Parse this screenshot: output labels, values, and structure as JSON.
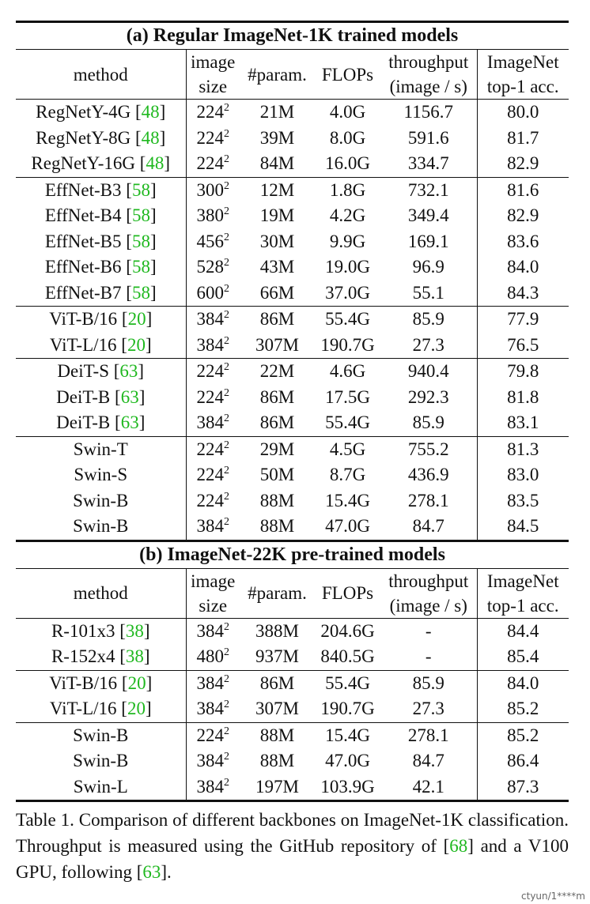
{
  "headers": {
    "method": "method",
    "image_size": [
      "image",
      "size"
    ],
    "params": "#param.",
    "flops": "FLOPs",
    "throughput": [
      "throughput",
      "(image / s)"
    ],
    "imagenet": [
      "ImageNet",
      "top-1 acc."
    ]
  },
  "sections": [
    {
      "title": "(a) Regular ImageNet-1K trained models",
      "groups": [
        [
          {
            "method": "RegNetY-4G",
            "cite": "48",
            "size": "224",
            "params": "21M",
            "flops": "4.0G",
            "throughput": "1156.7",
            "acc": "80.0"
          },
          {
            "method": "RegNetY-8G",
            "cite": "48",
            "size": "224",
            "params": "39M",
            "flops": "8.0G",
            "throughput": "591.6",
            "acc": "81.7"
          },
          {
            "method": "RegNetY-16G",
            "cite": "48",
            "size": "224",
            "params": "84M",
            "flops": "16.0G",
            "throughput": "334.7",
            "acc": "82.9"
          }
        ],
        [
          {
            "method": "EffNet-B3",
            "cite": "58",
            "size": "300",
            "params": "12M",
            "flops": "1.8G",
            "throughput": "732.1",
            "acc": "81.6"
          },
          {
            "method": "EffNet-B4",
            "cite": "58",
            "size": "380",
            "params": "19M",
            "flops": "4.2G",
            "throughput": "349.4",
            "acc": "82.9"
          },
          {
            "method": "EffNet-B5",
            "cite": "58",
            "size": "456",
            "params": "30M",
            "flops": "9.9G",
            "throughput": "169.1",
            "acc": "83.6"
          },
          {
            "method": "EffNet-B6",
            "cite": "58",
            "size": "528",
            "params": "43M",
            "flops": "19.0G",
            "throughput": "96.9",
            "acc": "84.0"
          },
          {
            "method": "EffNet-B7",
            "cite": "58",
            "size": "600",
            "params": "66M",
            "flops": "37.0G",
            "throughput": "55.1",
            "acc": "84.3"
          }
        ],
        [
          {
            "method": "ViT-B/16",
            "cite": "20",
            "size": "384",
            "params": "86M",
            "flops": "55.4G",
            "throughput": "85.9",
            "acc": "77.9"
          },
          {
            "method": "ViT-L/16",
            "cite": "20",
            "size": "384",
            "params": "307M",
            "flops": "190.7G",
            "throughput": "27.3",
            "acc": "76.5"
          }
        ],
        [
          {
            "method": "DeiT-S",
            "cite": "63",
            "size": "224",
            "params": "22M",
            "flops": "4.6G",
            "throughput": "940.4",
            "acc": "79.8"
          },
          {
            "method": "DeiT-B",
            "cite": "63",
            "size": "224",
            "params": "86M",
            "flops": "17.5G",
            "throughput": "292.3",
            "acc": "81.8"
          },
          {
            "method": "DeiT-B",
            "cite": "63",
            "size": "384",
            "params": "86M",
            "flops": "55.4G",
            "throughput": "85.9",
            "acc": "83.1"
          }
        ],
        [
          {
            "method": "Swin-T",
            "cite": "",
            "size": "224",
            "params": "29M",
            "flops": "4.5G",
            "throughput": "755.2",
            "acc": "81.3"
          },
          {
            "method": "Swin-S",
            "cite": "",
            "size": "224",
            "params": "50M",
            "flops": "8.7G",
            "throughput": "436.9",
            "acc": "83.0"
          },
          {
            "method": "Swin-B",
            "cite": "",
            "size": "224",
            "params": "88M",
            "flops": "15.4G",
            "throughput": "278.1",
            "acc": "83.5"
          },
          {
            "method": "Swin-B",
            "cite": "",
            "size": "384",
            "params": "88M",
            "flops": "47.0G",
            "throughput": "84.7",
            "acc": "84.5"
          }
        ]
      ]
    },
    {
      "title": "(b) ImageNet-22K pre-trained models",
      "groups": [
        [
          {
            "method": "R-101x3",
            "cite": "38",
            "size": "384",
            "params": "388M",
            "flops": "204.6G",
            "throughput": "-",
            "acc": "84.4"
          },
          {
            "method": "R-152x4",
            "cite": "38",
            "size": "480",
            "params": "937M",
            "flops": "840.5G",
            "throughput": "-",
            "acc": "85.4"
          }
        ],
        [
          {
            "method": "ViT-B/16",
            "cite": "20",
            "size": "384",
            "params": "86M",
            "flops": "55.4G",
            "throughput": "85.9",
            "acc": "84.0"
          },
          {
            "method": "ViT-L/16",
            "cite": "20",
            "size": "384",
            "params": "307M",
            "flops": "190.7G",
            "throughput": "27.3",
            "acc": "85.2"
          }
        ],
        [
          {
            "method": "Swin-B",
            "cite": "",
            "size": "224",
            "params": "88M",
            "flops": "15.4G",
            "throughput": "278.1",
            "acc": "85.2"
          },
          {
            "method": "Swin-B",
            "cite": "",
            "size": "384",
            "params": "88M",
            "flops": "47.0G",
            "throughput": "84.7",
            "acc": "86.4"
          },
          {
            "method": "Swin-L",
            "cite": "",
            "size": "384",
            "params": "197M",
            "flops": "103.9G",
            "throughput": "42.1",
            "acc": "87.3"
          }
        ]
      ]
    }
  ],
  "size_exponent": "2",
  "caption": {
    "pre": "Table 1. Comparison of different backbones on ImageNet-1K classification.  Throughput is measured using the GitHub repository of [",
    "cite1": "68",
    "mid": "] and a V100 GPU, following [",
    "cite2": "63",
    "post": "]."
  },
  "watermark": "ctyun/1****m",
  "colors": {
    "citation": "#1fb81f",
    "text": "#111111"
  }
}
